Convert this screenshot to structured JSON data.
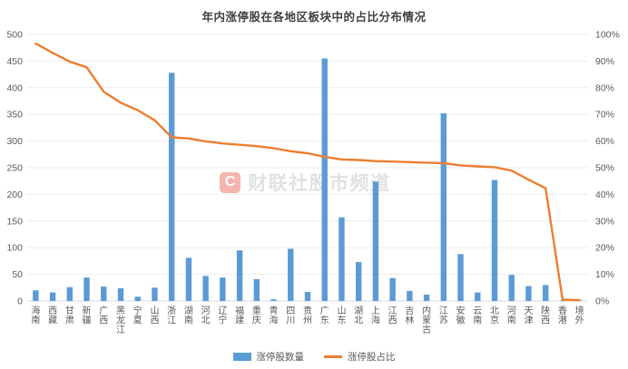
{
  "title": "年内涨停股在各地区板块中的占比分布情况",
  "watermark": {
    "logo_letter": "C",
    "text": "财联社股市频道"
  },
  "colors": {
    "bar": "#5B9BD5",
    "line": "#ED7D31",
    "grid": "#EBEBEB",
    "axis_line": "#D9D9D9",
    "axis_text": "#595959",
    "title_text": "#404040"
  },
  "chart_data": {
    "type": "bar",
    "subtype": "bar+line combo",
    "title": "年内涨停股在各地区板块中的占比分布情况",
    "categories": [
      "海南",
      "西藏",
      "甘肃",
      "新疆",
      "广西",
      "黑龙江",
      "宁夏",
      "山西",
      "浙江",
      "湖南",
      "河北",
      "辽宁",
      "福建",
      "重庆",
      "青海",
      "四川",
      "贵州",
      "广东",
      "山东",
      "湖北",
      "上海",
      "江西",
      "吉林",
      "内蒙古",
      "江苏",
      "安徽",
      "云南",
      "北京",
      "河南",
      "天津",
      "陕西",
      "香港",
      "境外"
    ],
    "series": [
      {
        "name": "涨停股数量",
        "type": "bar",
        "axis": "left",
        "values": [
          20,
          16,
          26,
          44,
          27,
          24,
          8,
          25,
          428,
          81,
          47,
          44,
          95,
          41,
          3,
          98,
          17,
          455,
          157,
          73,
          224,
          43,
          19,
          12,
          352,
          88,
          16,
          227,
          49,
          28,
          30,
          1,
          1
        ]
      },
      {
        "name": "涨停股占比",
        "type": "line",
        "axis": "right",
        "values": [
          96.6,
          93.1,
          89.8,
          87.7,
          78.5,
          74.4,
          71.6,
          67.8,
          61.4,
          61.0,
          59.9,
          59.1,
          58.6,
          58.1,
          57.3,
          56.2,
          55.4,
          54.1,
          53.1,
          52.9,
          52.5,
          52.3,
          52.1,
          51.9,
          51.7,
          50.9,
          50.5,
          50.2,
          48.9,
          45.5,
          42.3,
          0.5,
          0.3
        ]
      }
    ],
    "axis_left": {
      "min": 0,
      "max": 500,
      "step": 50
    },
    "axis_right": {
      "min": 0,
      "max": 100,
      "step": 10,
      "suffix": "%"
    },
    "grid": "horizontal",
    "legend_position": "bottom"
  }
}
